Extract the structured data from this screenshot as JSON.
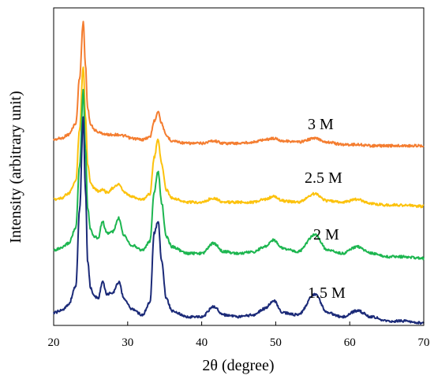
{
  "chart_data": {
    "type": "line",
    "xlabel": "2θ (degree)",
    "ylabel": "Intensity (arbitrary unit)",
    "xlim": [
      20,
      70
    ],
    "x_ticks": [
      "20",
      "30",
      "40",
      "50",
      "60",
      "70"
    ],
    "y_ticks": [],
    "grid": false,
    "legend": "none",
    "x": [
      20,
      21,
      22,
      23,
      23.5,
      24,
      24.3,
      24.6,
      25,
      25.5,
      26,
      26.6,
      27.2,
      28,
      28.8,
      29.5,
      30.5,
      32,
      33,
      33.6,
      34.1,
      34.6,
      35.2,
      36,
      38,
      40,
      41.6,
      43,
      45,
      47,
      48.5,
      49.7,
      51,
      53,
      55.3,
      57,
      59,
      61,
      63,
      65,
      67,
      70
    ],
    "series": [
      {
        "name": "3 M",
        "color": "#f47d30",
        "values": [
          0.05,
          0.06,
          0.09,
          0.18,
          0.55,
          1.0,
          0.65,
          0.3,
          0.17,
          0.13,
          0.11,
          0.1,
          0.09,
          0.09,
          0.09,
          0.08,
          0.06,
          0.05,
          0.07,
          0.2,
          0.28,
          0.18,
          0.08,
          0.04,
          0.02,
          0.02,
          0.04,
          0.02,
          0.02,
          0.03,
          0.05,
          0.06,
          0.04,
          0.03,
          0.06,
          0.03,
          0.01,
          0.01,
          0.0,
          0.0,
          0.0,
          0.0
        ]
      },
      {
        "name": "2.5 M",
        "color": "#fcc20d",
        "values": [
          0.05,
          0.06,
          0.09,
          0.18,
          0.55,
          1.0,
          0.65,
          0.3,
          0.17,
          0.13,
          0.11,
          0.12,
          0.1,
          0.13,
          0.16,
          0.1,
          0.07,
          0.05,
          0.09,
          0.35,
          0.48,
          0.3,
          0.12,
          0.06,
          0.03,
          0.03,
          0.06,
          0.03,
          0.03,
          0.03,
          0.05,
          0.07,
          0.04,
          0.03,
          0.09,
          0.04,
          0.03,
          0.05,
          0.02,
          0.01,
          0.01,
          0.0
        ]
      },
      {
        "name": "2 M",
        "color": "#1db650",
        "values": [
          0.05,
          0.06,
          0.09,
          0.18,
          0.55,
          1.0,
          0.65,
          0.3,
          0.17,
          0.13,
          0.12,
          0.22,
          0.15,
          0.16,
          0.24,
          0.14,
          0.08,
          0.05,
          0.1,
          0.4,
          0.52,
          0.33,
          0.13,
          0.07,
          0.03,
          0.03,
          0.09,
          0.04,
          0.03,
          0.04,
          0.07,
          0.11,
          0.06,
          0.04,
          0.14,
          0.05,
          0.03,
          0.07,
          0.03,
          0.01,
          0.01,
          0.0
        ]
      },
      {
        "name": "1.5 M",
        "color": "#1b2a78",
        "values": [
          0.05,
          0.06,
          0.09,
          0.18,
          0.55,
          1.0,
          0.65,
          0.3,
          0.17,
          0.13,
          0.12,
          0.2,
          0.14,
          0.15,
          0.2,
          0.12,
          0.07,
          0.04,
          0.1,
          0.44,
          0.5,
          0.3,
          0.12,
          0.06,
          0.03,
          0.03,
          0.08,
          0.04,
          0.03,
          0.04,
          0.07,
          0.11,
          0.05,
          0.04,
          0.14,
          0.05,
          0.03,
          0.06,
          0.03,
          0.01,
          0.01,
          0.0
        ]
      }
    ]
  }
}
